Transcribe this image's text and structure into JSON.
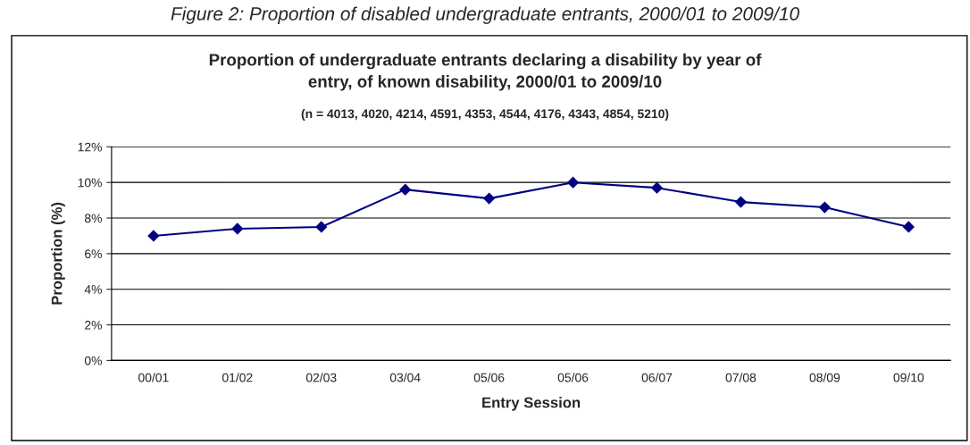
{
  "chart_data": {
    "type": "line",
    "title": "Proportion of undergraduate entrants declaring a disability by year of\nentry, of known disability, 2000/01 to 2009/10",
    "subtitle": "(n = 4013, 4020, 4214, 4591, 4353, 4544, 4176, 4343, 4854, 5210)",
    "annotations": [
      "Figure 2: Proportion of disabled undergraduate entrants, 2000/01 to 2009/10"
    ],
    "xlabel": "Entry Session",
    "ylabel": "Proportion (%)",
    "categories": [
      "00/01",
      "01/02",
      "02/03",
      "03/04",
      "05/06",
      "05/06",
      "06/07",
      "07/08",
      "08/09",
      "09/10"
    ],
    "series": [
      {
        "color": "#000080",
        "values": [
          7.0,
          7.4,
          7.5,
          9.6,
          9.1,
          10.0,
          9.7,
          8.9,
          8.6,
          7.5
        ]
      }
    ],
    "ylim": [
      0,
      12
    ],
    "yticks": [
      {
        "value": 0,
        "label": "0%"
      },
      {
        "value": 2,
        "label": "2%"
      },
      {
        "value": 4,
        "label": "4%"
      },
      {
        "value": 6,
        "label": "6%"
      },
      {
        "value": 8,
        "label": "8%"
      },
      {
        "value": 10,
        "label": "10%"
      },
      {
        "value": 12,
        "label": "12%"
      }
    ],
    "grid": "y",
    "marker": "diamond",
    "line_style": "solid",
    "legend": false
  }
}
